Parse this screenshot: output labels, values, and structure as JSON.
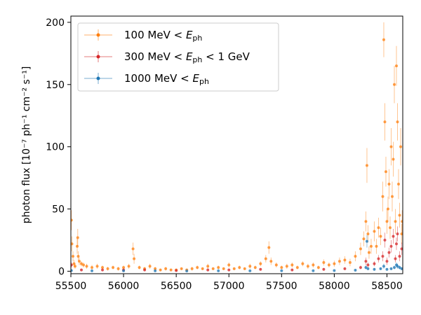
{
  "chart_data": {
    "type": "scatter",
    "title": "",
    "xlabel": "",
    "ylabel": "photon flux [10⁻⁷ ph⁻¹ cm⁻² s⁻¹]",
    "xlim": [
      55500,
      58650
    ],
    "ylim": [
      -2,
      205
    ],
    "xticks": [
      55500,
      56000,
      56500,
      57000,
      57500,
      58000,
      58500
    ],
    "yticks": [
      0,
      50,
      100,
      150,
      200
    ],
    "grid": false,
    "legend_position": "top-left",
    "series": [
      {
        "name": "100 MeV < E_ph",
        "legend_prefix": "100 MeV < ",
        "legend_suffix": "",
        "color": "#ff7f0e",
        "points": [
          [
            55505,
            41,
            8
          ],
          [
            55510,
            22,
            6
          ],
          [
            55520,
            12,
            4
          ],
          [
            55530,
            6,
            3
          ],
          [
            55540,
            4,
            2
          ],
          [
            55560,
            20,
            6
          ],
          [
            55565,
            27,
            7
          ],
          [
            55570,
            12,
            4
          ],
          [
            55580,
            8,
            3
          ],
          [
            55600,
            6,
            2
          ],
          [
            55620,
            5,
            2
          ],
          [
            55650,
            4,
            2
          ],
          [
            55700,
            3,
            2
          ],
          [
            55750,
            4,
            2
          ],
          [
            55800,
            3,
            1.5
          ],
          [
            55850,
            2,
            1.5
          ],
          [
            55900,
            3,
            1.5
          ],
          [
            55950,
            2,
            1.5
          ],
          [
            56000,
            3,
            1.5
          ],
          [
            56050,
            4,
            2
          ],
          [
            56090,
            18,
            5
          ],
          [
            56100,
            10,
            4
          ],
          [
            56150,
            3,
            1.5
          ],
          [
            56200,
            2,
            1.5
          ],
          [
            56250,
            4,
            2
          ],
          [
            56300,
            2,
            1.5
          ],
          [
            56350,
            1,
            1
          ],
          [
            56400,
            2,
            1.5
          ],
          [
            56450,
            1,
            1
          ],
          [
            56500,
            1,
            1
          ],
          [
            56550,
            2,
            1
          ],
          [
            56600,
            1,
            1
          ],
          [
            56650,
            2,
            1.5
          ],
          [
            56700,
            3,
            1.5
          ],
          [
            56750,
            2,
            1
          ],
          [
            56800,
            4,
            2
          ],
          [
            56850,
            2,
            1
          ],
          [
            56900,
            3,
            1.5
          ],
          [
            56950,
            2,
            1
          ],
          [
            57000,
            5,
            2
          ],
          [
            57050,
            2,
            1
          ],
          [
            57100,
            3,
            1.5
          ],
          [
            57150,
            2,
            1
          ],
          [
            57200,
            4,
            2
          ],
          [
            57250,
            3,
            1.5
          ],
          [
            57300,
            6,
            2
          ],
          [
            57350,
            10,
            3
          ],
          [
            57380,
            19,
            5
          ],
          [
            57400,
            8,
            3
          ],
          [
            57450,
            5,
            2
          ],
          [
            57500,
            3,
            1.5
          ],
          [
            57550,
            4,
            2
          ],
          [
            57600,
            5,
            2
          ],
          [
            57650,
            3,
            1.5
          ],
          [
            57700,
            6,
            2
          ],
          [
            57750,
            4,
            2
          ],
          [
            57800,
            5,
            2
          ],
          [
            57850,
            3,
            1.5
          ],
          [
            57900,
            7,
            2.5
          ],
          [
            57950,
            5,
            2
          ],
          [
            58000,
            6,
            2.5
          ],
          [
            58050,
            8,
            3
          ],
          [
            58100,
            9,
            3
          ],
          [
            58150,
            7,
            3
          ],
          [
            58200,
            12,
            4
          ],
          [
            58250,
            18,
            5
          ],
          [
            58280,
            26,
            6
          ],
          [
            58300,
            40,
            8
          ],
          [
            58310,
            85,
            14
          ],
          [
            58320,
            30,
            7
          ],
          [
            58330,
            15,
            5
          ],
          [
            58350,
            20,
            6
          ],
          [
            58380,
            32,
            8
          ],
          [
            58400,
            20,
            6
          ],
          [
            58420,
            35,
            8
          ],
          [
            58440,
            28,
            7
          ],
          [
            58460,
            60,
            12
          ],
          [
            58470,
            186,
            14
          ],
          [
            58480,
            120,
            15
          ],
          [
            58490,
            80,
            12
          ],
          [
            58500,
            40,
            10
          ],
          [
            58510,
            50,
            10
          ],
          [
            58520,
            70,
            12
          ],
          [
            58530,
            35,
            9
          ],
          [
            58540,
            100,
            15
          ],
          [
            58550,
            60,
            12
          ],
          [
            58560,
            90,
            14
          ],
          [
            58570,
            150,
            15
          ],
          [
            58580,
            40,
            10
          ],
          [
            58590,
            165,
            16
          ],
          [
            58600,
            120,
            15
          ],
          [
            58610,
            70,
            12
          ],
          [
            58620,
            45,
            10
          ],
          [
            58630,
            100,
            15
          ],
          [
            58640,
            30,
            8
          ],
          [
            58645,
            40,
            9
          ]
        ]
      },
      {
        "name": "300 MeV < E_ph < 1 GeV",
        "legend_prefix": "300 MeV < ",
        "legend_suffix": " < 1 GeV",
        "color": "#d62728",
        "points": [
          [
            55505,
            5,
            2
          ],
          [
            55600,
            1,
            1
          ],
          [
            55800,
            1,
            1
          ],
          [
            56000,
            1,
            1
          ],
          [
            56200,
            1,
            1
          ],
          [
            56500,
            0.5,
            0.5
          ],
          [
            56800,
            1,
            1
          ],
          [
            57000,
            1,
            1
          ],
          [
            57300,
            1.5,
            1
          ],
          [
            57600,
            1,
            1
          ],
          [
            57900,
            1.5,
            1
          ],
          [
            58100,
            2,
            1
          ],
          [
            58250,
            3,
            1.5
          ],
          [
            58300,
            8,
            3
          ],
          [
            58320,
            5,
            2
          ],
          [
            58380,
            6,
            2
          ],
          [
            58420,
            10,
            3
          ],
          [
            58460,
            12,
            4
          ],
          [
            58480,
            25,
            6
          ],
          [
            58500,
            8,
            3
          ],
          [
            58520,
            15,
            4
          ],
          [
            58540,
            20,
            5
          ],
          [
            58560,
            28,
            6
          ],
          [
            58580,
            10,
            3
          ],
          [
            58590,
            22,
            5
          ],
          [
            58600,
            30,
            6
          ],
          [
            58620,
            12,
            4
          ],
          [
            58640,
            18,
            5
          ]
        ]
      },
      {
        "name": "1000 MeV < E_ph",
        "legend_prefix": "1000 MeV < ",
        "legend_suffix": "",
        "color": "#1f77b4",
        "points": [
          [
            55505,
            0.5,
            0.5
          ],
          [
            55700,
            0.3,
            0.3
          ],
          [
            56000,
            0.3,
            0.3
          ],
          [
            56300,
            0.3,
            0.3
          ],
          [
            56600,
            0.2,
            0.2
          ],
          [
            56900,
            0.3,
            0.3
          ],
          [
            57200,
            0.3,
            0.3
          ],
          [
            57500,
            0.4,
            0.3
          ],
          [
            57800,
            0.4,
            0.3
          ],
          [
            58000,
            0.5,
            0.4
          ],
          [
            58200,
            0.8,
            0.5
          ],
          [
            58300,
            3,
            1.5
          ],
          [
            58310,
            24,
            5
          ],
          [
            58320,
            2,
            1
          ],
          [
            58380,
            1.5,
            1
          ],
          [
            58440,
            2,
            1
          ],
          [
            58470,
            4,
            2
          ],
          [
            58500,
            1.5,
            1
          ],
          [
            58540,
            2,
            1
          ],
          [
            58570,
            3,
            1.5
          ],
          [
            58590,
            5,
            2
          ],
          [
            58600,
            4,
            2
          ],
          [
            58620,
            3,
            1.5
          ],
          [
            58640,
            2,
            1
          ]
        ]
      }
    ]
  }
}
